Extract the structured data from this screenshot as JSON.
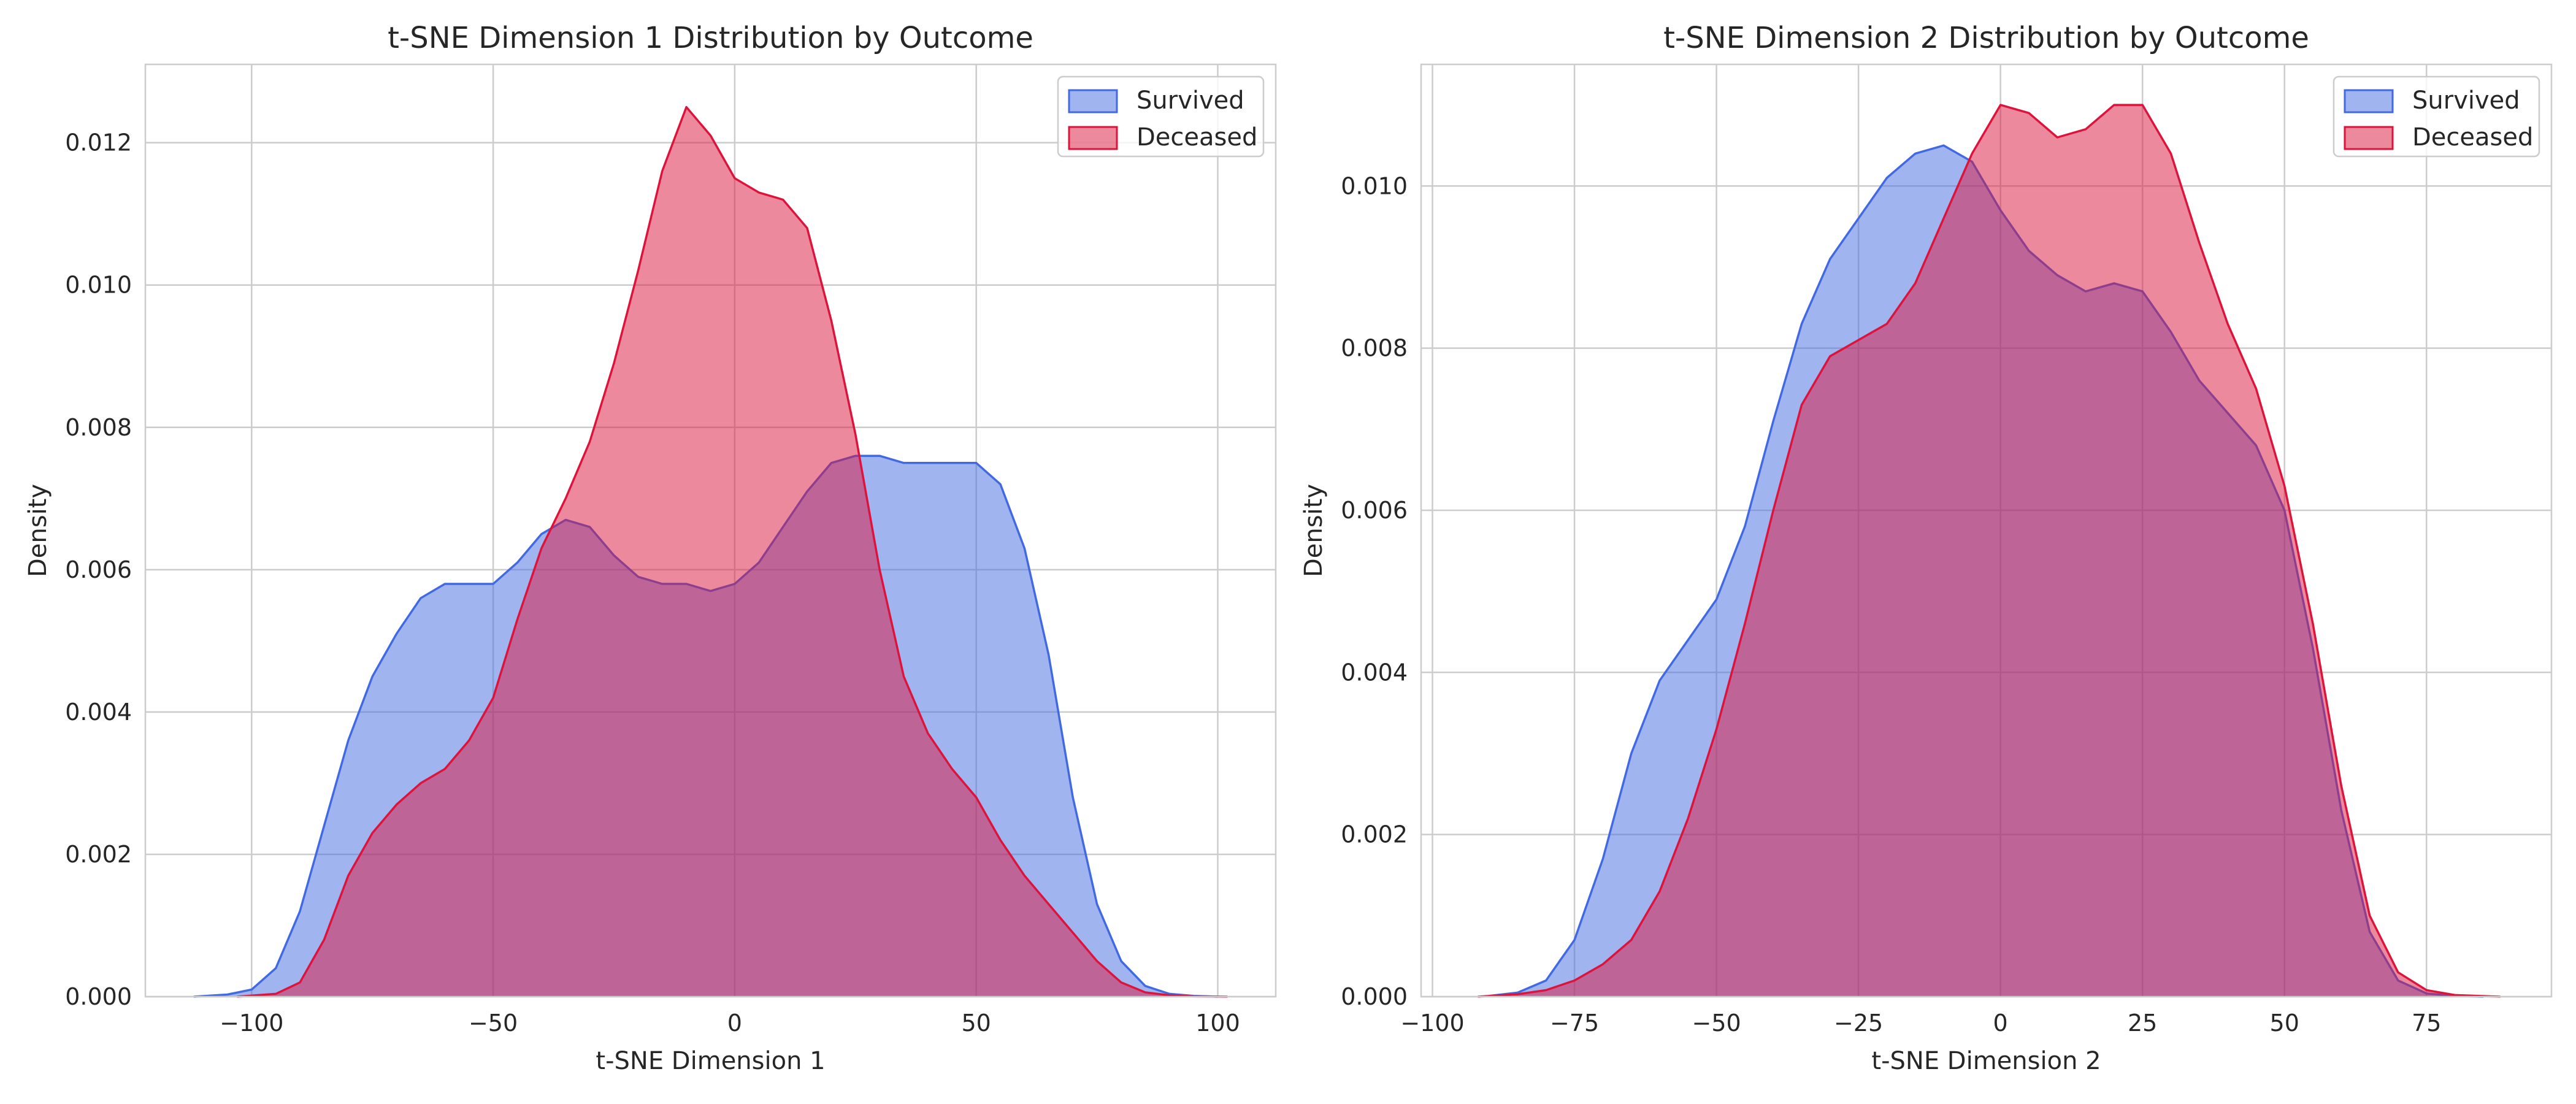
{
  "chart_data": [
    {
      "type": "area",
      "title": "t-SNE Dimension 1 Distribution by Outcome",
      "xlabel": "t-SNE Dimension 1",
      "ylabel": "Density",
      "xlim": [
        -122,
        112
      ],
      "ylim": [
        0,
        0.0131
      ],
      "xticks": [
        -100,
        -50,
        0,
        50,
        100
      ],
      "xtick_labels": [
        "−100",
        "−50",
        "0",
        "50",
        "100"
      ],
      "yticks": [
        0.0,
        0.002,
        0.004,
        0.006,
        0.008,
        0.01,
        0.012
      ],
      "ytick_labels": [
        "0.000",
        "0.002",
        "0.004",
        "0.006",
        "0.008",
        "0.010",
        "0.012"
      ],
      "grid": true,
      "legend": "top-right",
      "series": [
        {
          "name": "Survived",
          "color": "#4169e1",
          "x": [
            -112,
            -105,
            -100,
            -95,
            -90,
            -85,
            -80,
            -75,
            -70,
            -65,
            -60,
            -55,
            -50,
            -45,
            -40,
            -35,
            -30,
            -25,
            -20,
            -15,
            -10,
            -5,
            0,
            5,
            10,
            15,
            20,
            25,
            30,
            35,
            40,
            45,
            50,
            55,
            60,
            65,
            70,
            75,
            80,
            85,
            90,
            95,
            100
          ],
          "y": [
            0.0,
            3e-05,
            0.0001,
            0.0004,
            0.0012,
            0.0024,
            0.0036,
            0.0045,
            0.0051,
            0.0056,
            0.0058,
            0.0058,
            0.0058,
            0.0061,
            0.0065,
            0.0067,
            0.0066,
            0.0062,
            0.0059,
            0.0058,
            0.0058,
            0.0057,
            0.0058,
            0.0061,
            0.0066,
            0.0071,
            0.0075,
            0.0076,
            0.0076,
            0.0075,
            0.0075,
            0.0075,
            0.0075,
            0.0072,
            0.0063,
            0.0048,
            0.0028,
            0.0013,
            0.0005,
            0.00015,
            4e-05,
            1e-05,
            0.0
          ]
        },
        {
          "name": "Deceased",
          "color": "#dc143c",
          "x": [
            -103,
            -95,
            -90,
            -85,
            -80,
            -75,
            -70,
            -65,
            -60,
            -55,
            -50,
            -45,
            -40,
            -35,
            -30,
            -25,
            -20,
            -15,
            -10,
            -5,
            0,
            5,
            10,
            15,
            20,
            25,
            30,
            35,
            40,
            45,
            50,
            55,
            60,
            65,
            70,
            75,
            80,
            85,
            90,
            95,
            102
          ],
          "y": [
            0.0,
            4e-05,
            0.0002,
            0.0008,
            0.0017,
            0.0023,
            0.0027,
            0.003,
            0.0032,
            0.0036,
            0.0042,
            0.0053,
            0.0063,
            0.007,
            0.0078,
            0.0089,
            0.0102,
            0.0116,
            0.0125,
            0.0121,
            0.0115,
            0.0113,
            0.0112,
            0.0108,
            0.0095,
            0.0079,
            0.006,
            0.0045,
            0.0037,
            0.0032,
            0.0028,
            0.0022,
            0.0017,
            0.0013,
            0.0009,
            0.0005,
            0.0002,
            6e-05,
            2e-05,
            5e-06,
            0.0
          ]
        }
      ]
    },
    {
      "type": "area",
      "title": "t-SNE Dimension 2 Distribution by Outcome",
      "xlabel": "t-SNE Dimension 2",
      "ylabel": "Density",
      "xlim": [
        -102,
        97
      ],
      "ylim": [
        0,
        0.0115
      ],
      "xticks": [
        -100,
        -75,
        -50,
        -25,
        0,
        25,
        50,
        75
      ],
      "xtick_labels": [
        "−100",
        "−75",
        "−50",
        "−25",
        "0",
        "25",
        "50",
        "75"
      ],
      "yticks": [
        0.0,
        0.002,
        0.004,
        0.006,
        0.008,
        0.01
      ],
      "ytick_labels": [
        "0.000",
        "0.002",
        "0.004",
        "0.006",
        "0.008",
        "0.010"
      ],
      "grid": true,
      "legend": "top-right",
      "series": [
        {
          "name": "Survived",
          "color": "#4169e1",
          "x": [
            -90,
            -85,
            -80,
            -75,
            -70,
            -65,
            -60,
            -55,
            -50,
            -45,
            -40,
            -35,
            -30,
            -25,
            -20,
            -15,
            -10,
            -5,
            0,
            5,
            10,
            15,
            20,
            25,
            30,
            35,
            40,
            45,
            50,
            55,
            60,
            65,
            70,
            75,
            80,
            85
          ],
          "y": [
            1e-05,
            5e-05,
            0.0002,
            0.0007,
            0.0017,
            0.003,
            0.0039,
            0.0044,
            0.0049,
            0.0058,
            0.0071,
            0.0083,
            0.0091,
            0.0096,
            0.0101,
            0.0104,
            0.0105,
            0.0103,
            0.0097,
            0.0092,
            0.0089,
            0.0087,
            0.0088,
            0.0087,
            0.0082,
            0.0076,
            0.0072,
            0.0068,
            0.006,
            0.0043,
            0.0023,
            0.0008,
            0.0002,
            4e-05,
            1e-05,
            0.0
          ]
        },
        {
          "name": "Deceased",
          "color": "#dc143c",
          "x": [
            -92,
            -85,
            -80,
            -75,
            -70,
            -65,
            -60,
            -55,
            -50,
            -45,
            -40,
            -35,
            -30,
            -25,
            -20,
            -15,
            -10,
            -5,
            0,
            5,
            10,
            15,
            20,
            25,
            30,
            35,
            40,
            45,
            50,
            55,
            60,
            65,
            70,
            75,
            80,
            88
          ],
          "y": [
            0.0,
            3e-05,
            8e-05,
            0.0002,
            0.0004,
            0.0007,
            0.0013,
            0.0022,
            0.0033,
            0.0046,
            0.006,
            0.0073,
            0.0079,
            0.0081,
            0.0083,
            0.0088,
            0.0096,
            0.0104,
            0.011,
            0.0109,
            0.0106,
            0.0107,
            0.011,
            0.011,
            0.0104,
            0.0093,
            0.0083,
            0.0075,
            0.0063,
            0.0046,
            0.0026,
            0.001,
            0.0003,
            8e-05,
            2e-05,
            0.0
          ]
        }
      ]
    }
  ]
}
